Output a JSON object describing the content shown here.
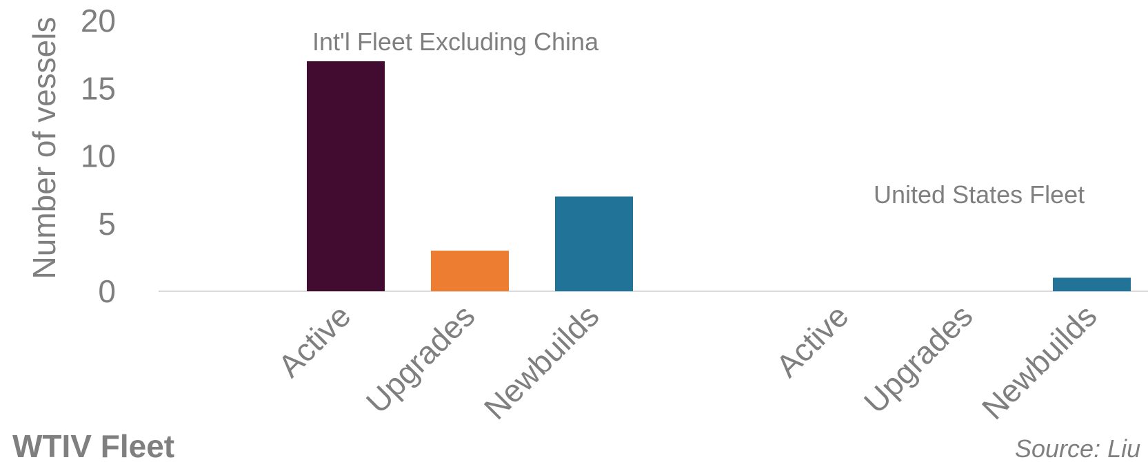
{
  "chart_data": {
    "type": "bar",
    "ylabel": "Number of vessels",
    "ylim": [
      0,
      20
    ],
    "yticks": [
      "0",
      "5",
      "10",
      "15",
      "20"
    ],
    "grid": false,
    "groups": [
      {
        "label": "Int'l Fleet Excluding China",
        "categories": [
          "Active",
          "Upgrades",
          "Newbuilds"
        ],
        "values": [
          17,
          3,
          7
        ]
      },
      {
        "label": "United States Fleet",
        "categories": [
          "Active",
          "Upgrades",
          "Newbuilds"
        ],
        "values": [
          0,
          0,
          1
        ]
      }
    ],
    "colors": {
      "Active": "#420c31",
      "Upgrades": "#ed7d31",
      "Newbuilds": "#217398"
    }
  },
  "footer": {
    "title": "WTIV Fleet",
    "source": "Source: Liu"
  }
}
